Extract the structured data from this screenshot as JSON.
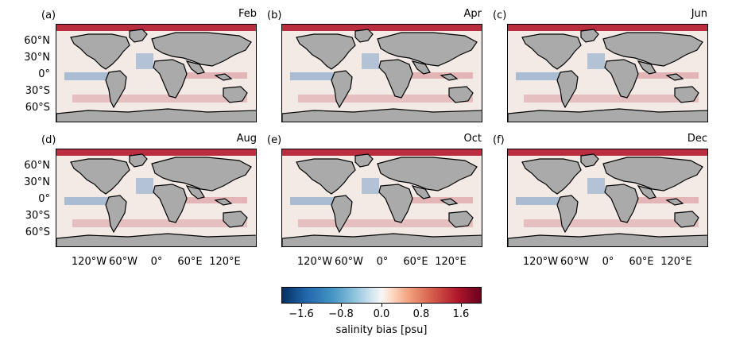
{
  "panels": [
    {
      "letter": "(a)",
      "month": "Feb"
    },
    {
      "letter": "(b)",
      "month": "Apr"
    },
    {
      "letter": "(c)",
      "month": "Jun"
    },
    {
      "letter": "(d)",
      "month": "Aug"
    },
    {
      "letter": "(e)",
      "month": "Oct"
    },
    {
      "letter": "(f)",
      "month": "Dec"
    }
  ],
  "y_ticks": [
    "60°N",
    "30°N",
    "0°",
    "30°S",
    "60°S"
  ],
  "x_ticks": [
    "120°W",
    "60°W",
    "0°",
    "60°E",
    "120°E"
  ],
  "colorbar": {
    "ticks": [
      "−1.6",
      "−0.8",
      "0.0",
      "0.8",
      "1.6"
    ],
    "label": "salinity bias [psu]",
    "colormap": "RdBu_r",
    "range": [
      -2.0,
      2.0
    ]
  },
  "colors": {
    "land": "#aaaaaa",
    "coast": "#000000",
    "positive_bias": "#b2182b",
    "negative_bias": "#2166ac",
    "neutral": "#f7f7f7"
  }
}
